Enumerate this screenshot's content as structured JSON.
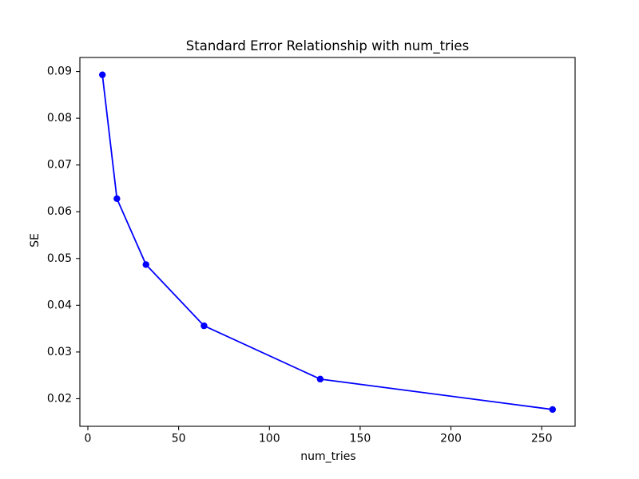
{
  "chart_data": {
    "type": "line",
    "title": "Standard Error Relationship with num_tries",
    "xlabel": "num_tries",
    "ylabel": "SE",
    "series": [
      {
        "name": "SE",
        "color": "#0000ff",
        "marker": "circle",
        "x": [
          8,
          16,
          32,
          64,
          128,
          256
        ],
        "y": [
          0.0893,
          0.0628,
          0.0487,
          0.0356,
          0.0242,
          0.0177
        ]
      }
    ],
    "xlim": [
      -4.4,
      268.4
    ],
    "ylim": [
      0.0141,
      0.093
    ],
    "xticks": [
      0,
      50,
      100,
      150,
      200,
      250
    ],
    "xtick_labels": [
      "0",
      "50",
      "100",
      "150",
      "200",
      "250"
    ],
    "yticks": [
      0.02,
      0.03,
      0.04,
      0.05,
      0.06,
      0.07,
      0.08,
      0.09
    ],
    "ytick_labels": [
      "0.02",
      "0.03",
      "0.04",
      "0.05",
      "0.06",
      "0.07",
      "0.08",
      "0.09"
    ],
    "grid": false,
    "legend": null,
    "background_color": "#ffffff",
    "spine_color": "#000000",
    "text_color": "#000000"
  }
}
